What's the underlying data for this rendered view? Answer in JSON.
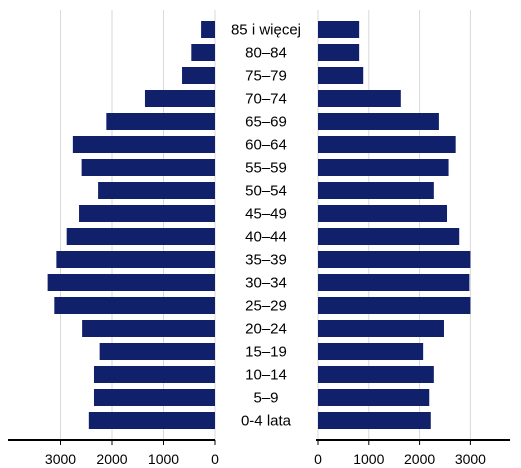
{
  "chart_data": {
    "type": "bar",
    "orientation": "horizontal",
    "layout": "population-pyramid",
    "categories": [
      "85 i więcej",
      "80–84",
      "75–79",
      "70–74",
      "65–69",
      "60–64",
      "55–59",
      "50–54",
      "45–49",
      "40–44",
      "35–39",
      "30–34",
      "25–29",
      "20–24",
      "15–19",
      "10–14",
      "5–9",
      "0-4 lata"
    ],
    "series": [
      {
        "side": "left",
        "values": [
          270,
          460,
          640,
          1360,
          2110,
          2760,
          2590,
          2270,
          2640,
          2880,
          3080,
          3250,
          3120,
          2580,
          2240,
          2350,
          2350,
          2450
        ]
      },
      {
        "side": "right",
        "values": [
          810,
          810,
          890,
          1630,
          2380,
          2710,
          2570,
          2280,
          2540,
          2780,
          3000,
          2980,
          3000,
          2480,
          2070,
          2280,
          2190,
          2220
        ]
      }
    ],
    "left_axis": {
      "ticks": [
        3000,
        2000,
        1000,
        0
      ],
      "range": [
        0,
        3800
      ]
    },
    "right_axis": {
      "ticks": [
        0,
        1000,
        2000,
        3000
      ],
      "range": [
        0,
        3800
      ]
    },
    "grid": true,
    "colors": {
      "bar": "#10206b",
      "grid": "#d9d9d9",
      "axis": "#000000"
    }
  }
}
